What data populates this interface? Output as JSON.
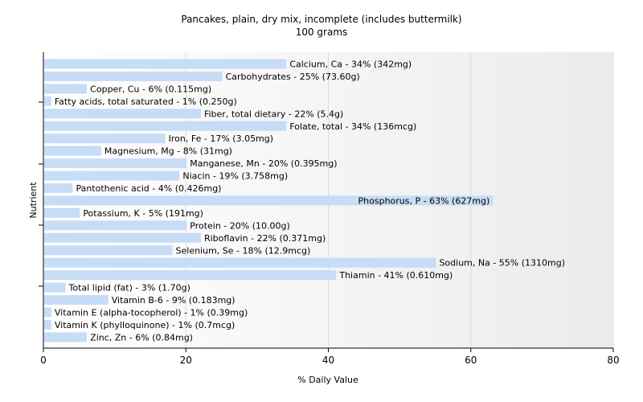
{
  "chart_data": {
    "type": "bar",
    "orientation": "horizontal",
    "title": "Pancakes, plain, dry mix, incomplete (includes buttermilk)",
    "subtitle": "100 grams",
    "xlabel": "% Daily Value",
    "ylabel": "Nutrient",
    "xlim": [
      0,
      80
    ],
    "xticks": [
      0,
      20,
      40,
      60,
      80
    ],
    "grid": true,
    "bar_color": "#c6dcf7",
    "categories": [
      "Calcium, Ca",
      "Carbohydrates",
      "Copper, Cu",
      "Fatty acids, total saturated",
      "Fiber, total dietary",
      "Folate, total",
      "Iron, Fe",
      "Magnesium, Mg",
      "Manganese, Mn",
      "Niacin",
      "Pantothenic acid",
      "Phosphorus, P",
      "Potassium, K",
      "Protein",
      "Riboflavin",
      "Selenium, Se",
      "Sodium, Na",
      "Thiamin",
      "Total lipid (fat)",
      "Vitamin B-6",
      "Vitamin E (alpha-tocopherol)",
      "Vitamin K (phylloquinone)",
      "Zinc, Zn"
    ],
    "values": [
      34,
      25,
      6,
      1,
      22,
      34,
      17,
      8,
      20,
      19,
      4,
      63,
      5,
      20,
      22,
      18,
      55,
      41,
      3,
      9,
      1,
      1,
      6
    ],
    "labels": [
      "Calcium, Ca - 34% (342mg)",
      "Carbohydrates - 25% (73.60g)",
      "Copper, Cu - 6% (0.115mg)",
      "Fatty acids, total saturated - 1% (0.250g)",
      "Fiber, total dietary - 22% (5.4g)",
      "Folate, total - 34% (136mcg)",
      "Iron, Fe - 17% (3.05mg)",
      "Magnesium, Mg - 8% (31mg)",
      "Manganese, Mn - 20% (0.395mg)",
      "Niacin - 19% (3.758mg)",
      "Pantothenic acid - 4% (0.426mg)",
      "Phosphorus, P - 63% (627mg)",
      "Potassium, K - 5% (191mg)",
      "Protein - 20% (10.00g)",
      "Riboflavin - 22% (0.371mg)",
      "Selenium, Se - 18% (12.9mcg)",
      "Sodium, Na - 55% (1310mg)",
      "Thiamin - 41% (0.610mg)",
      "Total lipid (fat) - 3% (1.70g)",
      "Vitamin B-6 - 9% (0.183mg)",
      "Vitamin E (alpha-tocopherol) - 1% (0.39mg)",
      "Vitamin K (phylloquinone) - 1% (0.7mcg)",
      "Zinc, Zn - 6% (0.84mg)"
    ]
  }
}
